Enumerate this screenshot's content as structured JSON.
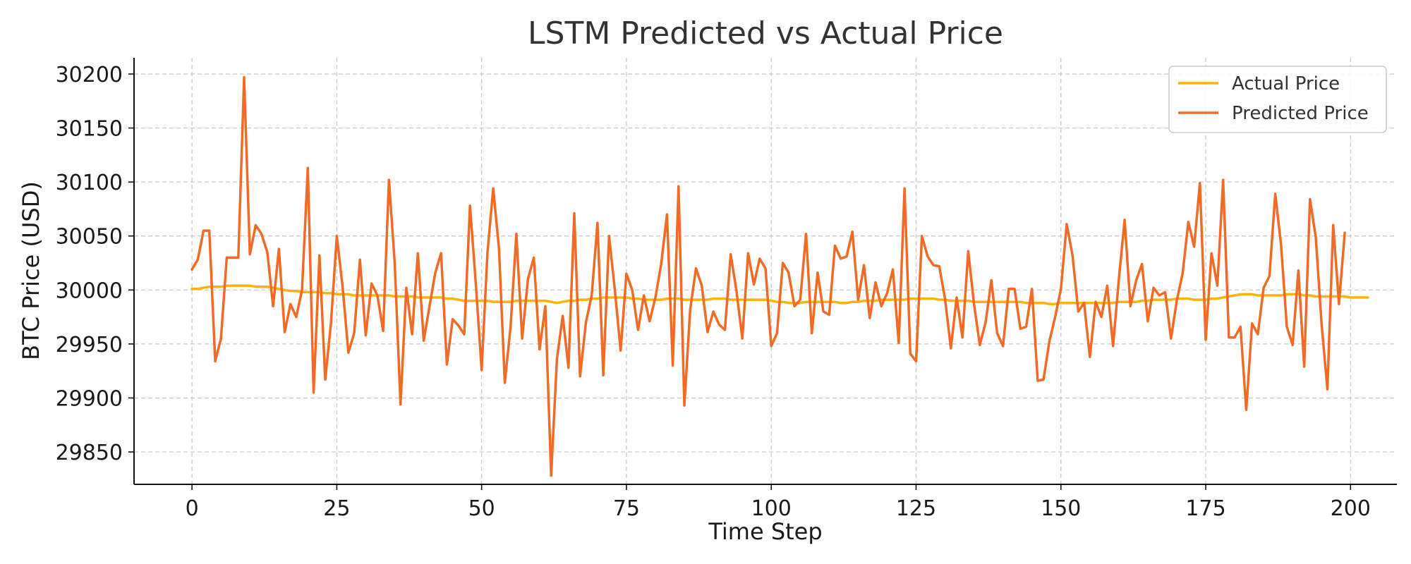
{
  "chart_data": {
    "type": "line",
    "title": "LSTM Predicted vs Actual Price",
    "xlabel": "Time Step",
    "ylabel": "BTC Price (USD)",
    "xlim": [
      -10,
      208
    ],
    "ylim": [
      29820,
      30215
    ],
    "x_ticks": [
      0,
      25,
      50,
      75,
      100,
      125,
      150,
      175,
      200
    ],
    "y_ticks": [
      29850,
      29900,
      29950,
      30000,
      30050,
      30100,
      30150,
      30200
    ],
    "grid": true,
    "legend_position": "top-right",
    "series": [
      {
        "name": "Actual Price",
        "color": "#FFB20F",
        "values": [
          30001,
          30001,
          30002,
          30003,
          30003,
          30003,
          30004,
          30004,
          30004,
          30004,
          30004,
          30003,
          30003,
          30003,
          30002,
          30001,
          30000,
          29999,
          29999,
          29998,
          29998,
          29998,
          29998,
          29997,
          29997,
          29996,
          29996,
          29996,
          29995,
          29995,
          29995,
          29995,
          29995,
          29995,
          29995,
          29994,
          29994,
          29994,
          29994,
          29993,
          29993,
          29993,
          29993,
          29993,
          29992,
          29992,
          29991,
          29990,
          29990,
          29990,
          29990,
          29990,
          29989,
          29989,
          29989,
          29989,
          29990,
          29990,
          29990,
          29990,
          29990,
          29990,
          29989,
          29988,
          29989,
          29990,
          29990,
          29991,
          29991,
          29992,
          29992,
          29993,
          29993,
          29993,
          29993,
          29993,
          29992,
          29992,
          29991,
          29991,
          29991,
          29991,
          29992,
          29992,
          29992,
          29991,
          29991,
          29991,
          29991,
          29991,
          29992,
          29992,
          29992,
          29991,
          29991,
          29991,
          29991,
          29991,
          29991,
          29991,
          29990,
          29989,
          29989,
          29988,
          29988,
          29988,
          29989,
          29989,
          29989,
          29989,
          29989,
          29989,
          29988,
          29988,
          29989,
          29989,
          29990,
          29990,
          29990,
          29991,
          29991,
          29991,
          29991,
          29991,
          29992,
          29992,
          29992,
          29992,
          29992,
          29991,
          29991,
          29990,
          29990,
          29990,
          29990,
          29989,
          29989,
          29989,
          29989,
          29989,
          29989,
          29989,
          29989,
          29989,
          29988,
          29988,
          29988,
          29988,
          29987,
          29987,
          29988,
          29988,
          29988,
          29988,
          29988,
          29988,
          29988,
          29988,
          29988,
          29988,
          29989,
          29989,
          29989,
          29989,
          29990,
          29990,
          29991,
          29991,
          29991,
          29991,
          29992,
          29992,
          29992,
          29991,
          29991,
          29991,
          29992,
          29992,
          29993,
          29994,
          29995,
          29996,
          29996,
          29996,
          29995,
          29995,
          29995,
          29995,
          29995,
          29996,
          29996,
          29996,
          29995,
          29995,
          29994,
          29994,
          29994,
          29994,
          29994,
          29994,
          29993,
          29993,
          29993,
          29993
        ]
      },
      {
        "name": "Predicted Price",
        "color": "#F26B26",
        "values": [
          30019,
          30028,
          30055,
          30055,
          29934,
          29955,
          30030,
          30030,
          30030,
          30197,
          30033,
          30060,
          30052,
          30035,
          29985,
          30038,
          29961,
          29987,
          29975,
          30000,
          30113,
          29905,
          30032,
          29917,
          29970,
          30050,
          30003,
          29942,
          29960,
          30028,
          29958,
          30006,
          29995,
          29962,
          30102,
          30025,
          29894,
          30002,
          29959,
          30034,
          29953,
          29985,
          30016,
          30034,
          29931,
          29973,
          29967,
          29959,
          30078,
          30006,
          29926,
          30034,
          30094,
          30038,
          29914,
          29966,
          30052,
          29955,
          30010,
          30030,
          29945,
          29985,
          29828,
          29936,
          29976,
          29928,
          30071,
          29920,
          29970,
          29995,
          30062,
          29921,
          30050,
          30000,
          29944,
          30015,
          30000,
          29963,
          29995,
          29971,
          29993,
          30024,
          30070,
          29930,
          30096,
          29893,
          29982,
          30020,
          30004,
          29961,
          29980,
          29968,
          29963,
          30033,
          29999,
          29955,
          30034,
          30005,
          30029,
          30020,
          29948,
          29960,
          30025,
          30016,
          29985,
          29991,
          30052,
          29960,
          30016,
          29980,
          29977,
          30041,
          30029,
          30031,
          30054,
          29991,
          30023,
          29974,
          30007,
          29985,
          29997,
          30019,
          29951,
          30094,
          29941,
          29934,
          30050,
          30031,
          30023,
          30022,
          29992,
          29946,
          29993,
          29956,
          30036,
          29987,
          29949,
          29970,
          30009,
          29960,
          29948,
          30001,
          30001,
          29964,
          29966,
          30001,
          29916,
          29917,
          29952,
          29975,
          30001,
          30061,
          30032,
          29980,
          29988,
          29938,
          29989,
          29975,
          30004,
          29948,
          30010,
          30065,
          29985,
          30009,
          30024,
          29971,
          30002,
          29995,
          29998,
          29955,
          29990,
          30015,
          30063,
          30040,
          30099,
          29954,
          30034,
          30004,
          30102,
          29956,
          29956,
          29966,
          29889,
          29969,
          29959,
          30002,
          30013,
          30089,
          30042,
          29966,
          29949,
          30018,
          29929,
          30084,
          30049,
          29968,
          29908,
          30060,
          29987,
          30053
        ]
      }
    ]
  }
}
